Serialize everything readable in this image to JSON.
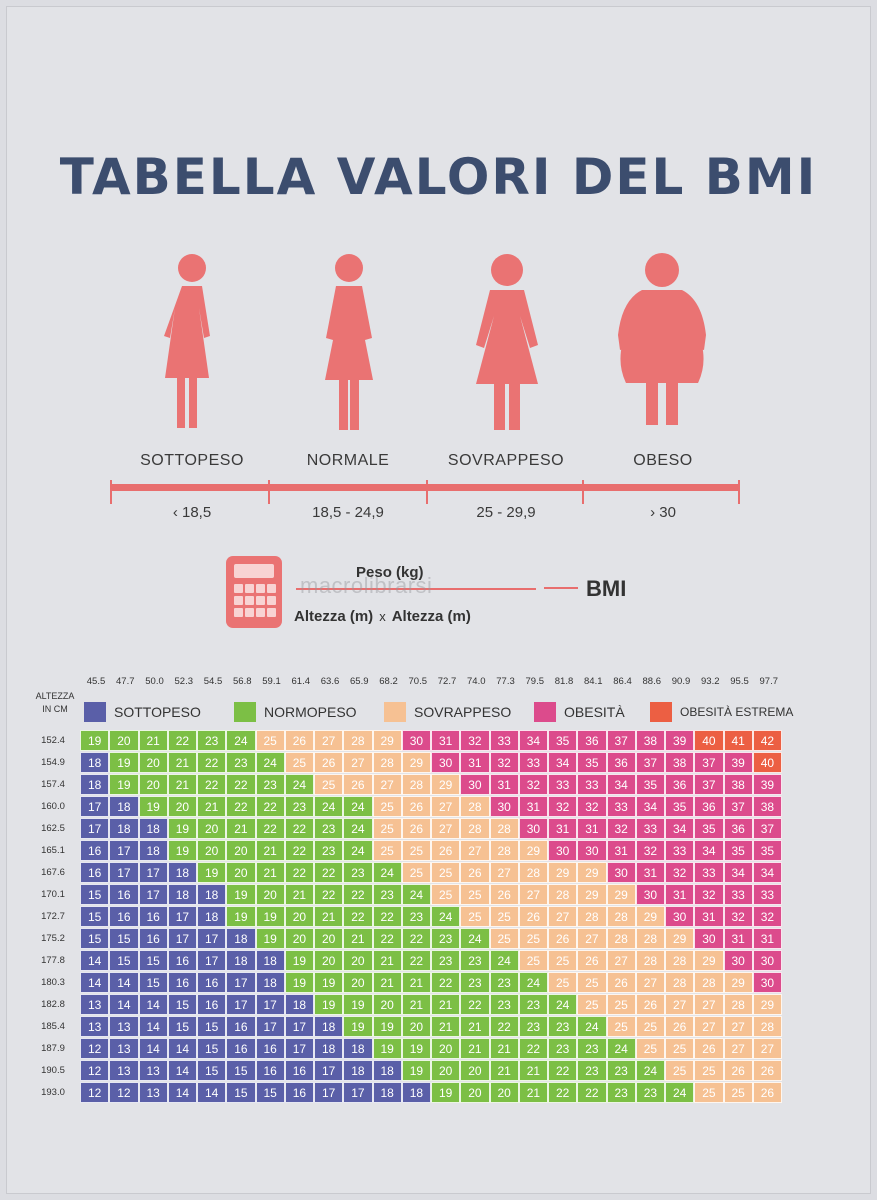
{
  "title": "TABELLA VALORI DEL BMI",
  "colors": {
    "title": "#3c4d6e",
    "figure": "#ea7373",
    "sottopeso": "#5a5fa8",
    "normopeso": "#7cbf45",
    "sovrappeso": "#f6c193",
    "obesita": "#dc4b8c",
    "obesita_estrema": "#ec5f43"
  },
  "categories": [
    {
      "label": "SOTTOPESO",
      "range": "‹ 18,5",
      "icon": "woman-thin-icon"
    },
    {
      "label": "NORMALE",
      "range": "18,5 - 24,9",
      "icon": "woman-normal-icon"
    },
    {
      "label": "SOVRAPPESO",
      "range": "25 - 29,9",
      "icon": "woman-overweight-icon"
    },
    {
      "label": "OBESO",
      "range": "› 30",
      "icon": "woman-obese-icon"
    }
  ],
  "formula": {
    "numerator": "Peso (kg)",
    "denominator_left": "Altezza (m)",
    "times": "x",
    "denominator_right": "Altezza (m)",
    "result": "BMI",
    "icon": "calculator-icon"
  },
  "watermark": "macrolibrarsi",
  "table": {
    "height_header": [
      "ALTEZZA",
      "IN CM"
    ],
    "legend": [
      {
        "label": "SOTTOPESO",
        "key": "sottopeso"
      },
      {
        "label": "NORMOPESO",
        "key": "normopeso"
      },
      {
        "label": "SOVRAPPESO",
        "key": "sovrappeso"
      },
      {
        "label": "OBESITÀ",
        "key": "obesita"
      },
      {
        "label": "OBESITÀ ESTREMA",
        "key": "obesita_estrema"
      }
    ],
    "weights": [
      "45.5",
      "47.7",
      "50.0",
      "52.3",
      "54.5",
      "56.8",
      "59.1",
      "61.4",
      "63.6",
      "65.9",
      "68.2",
      "70.5",
      "72.7",
      "74.0",
      "77.3",
      "79.5",
      "81.8",
      "84.1",
      "86.4",
      "88.6",
      "90.9",
      "93.2",
      "95.5",
      "97.7"
    ],
    "heights": [
      "152.4",
      "154.9",
      "157.4",
      "160.0",
      "162.5",
      "165.1",
      "167.6",
      "170.1",
      "172.7",
      "175.2",
      "177.8",
      "180.3",
      "182.8",
      "185.4",
      "187.9",
      "190.5",
      "193.0"
    ],
    "rows": [
      [
        19,
        20,
        21,
        22,
        23,
        24,
        25,
        26,
        27,
        28,
        29,
        30,
        31,
        32,
        33,
        34,
        35,
        36,
        37,
        38,
        39,
        40,
        41,
        42
      ],
      [
        18,
        19,
        20,
        21,
        22,
        23,
        24,
        25,
        26,
        27,
        28,
        29,
        30,
        31,
        32,
        33,
        34,
        35,
        36,
        37,
        38,
        37,
        39,
        40
      ],
      [
        18,
        19,
        20,
        21,
        22,
        22,
        23,
        24,
        25,
        26,
        27,
        28,
        29,
        30,
        31,
        32,
        33,
        33,
        34,
        35,
        36,
        37,
        38,
        39
      ],
      [
        17,
        18,
        19,
        20,
        21,
        22,
        22,
        23,
        24,
        24,
        25,
        26,
        27,
        28,
        30,
        31,
        32,
        32,
        33,
        34,
        35,
        36,
        37,
        38
      ],
      [
        17,
        18,
        18,
        19,
        20,
        21,
        22,
        22,
        23,
        24,
        25,
        26,
        27,
        28,
        28,
        30,
        31,
        31,
        32,
        33,
        34,
        35,
        36,
        37
      ],
      [
        16,
        17,
        18,
        19,
        20,
        20,
        21,
        22,
        23,
        24,
        25,
        25,
        26,
        27,
        28,
        29,
        30,
        30,
        31,
        32,
        33,
        34,
        35,
        35
      ],
      [
        16,
        17,
        17,
        18,
        19,
        20,
        21,
        22,
        22,
        23,
        24,
        25,
        25,
        26,
        27,
        28,
        29,
        29,
        30,
        31,
        32,
        33,
        34,
        34
      ],
      [
        15,
        16,
        17,
        18,
        18,
        19,
        20,
        21,
        22,
        22,
        23,
        24,
        25,
        25,
        26,
        27,
        28,
        29,
        29,
        30,
        31,
        32,
        33,
        33
      ],
      [
        15,
        16,
        16,
        17,
        18,
        19,
        19,
        20,
        21,
        22,
        22,
        23,
        24,
        25,
        25,
        26,
        27,
        28,
        28,
        29,
        30,
        31,
        32,
        32
      ],
      [
        15,
        15,
        16,
        17,
        17,
        18,
        19,
        20,
        20,
        21,
        22,
        22,
        23,
        24,
        25,
        25,
        26,
        27,
        28,
        28,
        29,
        30,
        31,
        31
      ],
      [
        14,
        15,
        15,
        16,
        17,
        18,
        18,
        19,
        20,
        20,
        21,
        22,
        23,
        23,
        24,
        25,
        25,
        26,
        27,
        28,
        28,
        29,
        30,
        30
      ],
      [
        14,
        14,
        15,
        16,
        16,
        17,
        18,
        19,
        19,
        20,
        21,
        21,
        22,
        23,
        23,
        24,
        25,
        25,
        26,
        27,
        28,
        28,
        29,
        30
      ],
      [
        13,
        14,
        14,
        15,
        16,
        17,
        17,
        18,
        19,
        19,
        20,
        21,
        21,
        22,
        23,
        23,
        24,
        25,
        25,
        26,
        27,
        27,
        28,
        29
      ],
      [
        13,
        13,
        14,
        15,
        15,
        16,
        17,
        17,
        18,
        19,
        19,
        20,
        21,
        21,
        22,
        23,
        23,
        24,
        25,
        25,
        26,
        27,
        27,
        28
      ],
      [
        12,
        13,
        14,
        14,
        15,
        16,
        16,
        17,
        18,
        18,
        19,
        19,
        20,
        21,
        21,
        22,
        23,
        23,
        24,
        25,
        25,
        26,
        27,
        27
      ],
      [
        12,
        13,
        13,
        14,
        15,
        15,
        16,
        16,
        17,
        18,
        18,
        19,
        20,
        20,
        21,
        21,
        22,
        23,
        23,
        24,
        25,
        25,
        26,
        26
      ],
      [
        12,
        12,
        13,
        14,
        14,
        15,
        15,
        16,
        17,
        17,
        18,
        18,
        19,
        20,
        20,
        21,
        22,
        22,
        23,
        23,
        24,
        25,
        25,
        26
      ]
    ]
  }
}
